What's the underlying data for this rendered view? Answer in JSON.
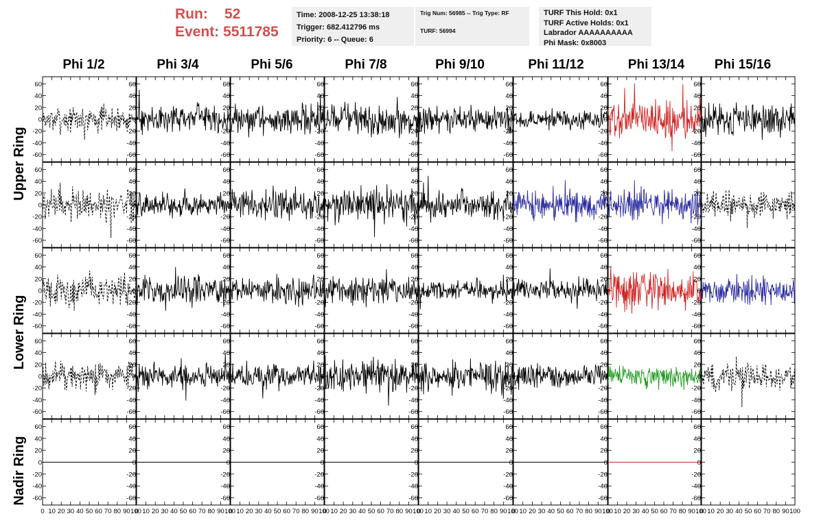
{
  "header": {
    "run_label": "Run:",
    "run_value": "52",
    "event_label": "Event:",
    "event_value": "5511785"
  },
  "info": {
    "time": "Time: 2008-12-25 13:38:18",
    "trigger": "Trigger: 682.412796 ms",
    "priority": "Priority: 6 -- Queue: 6",
    "trig_num": "Trig Num: 56985 -- Trig Type: RF",
    "turf": "TURF: 56994",
    "turf_hold": "TURF This Hold: 0x1",
    "turf_active": "TURF Active Holds: 0x1",
    "labrador": "Labrador AAAAAAAAAA",
    "phi_mask": "Phi Mask: 0x8003"
  },
  "colors": {
    "black": "#000000",
    "red": "#d02020",
    "blue": "#2a2aa0",
    "green": "#1c9a1c"
  },
  "chart_data": {
    "type": "line",
    "columns": [
      "Phi 1/2",
      "Phi 3/4",
      "Phi 5/6",
      "Phi 7/8",
      "Phi 9/10",
      "Phi 11/12",
      "Phi 13/14",
      "Phi 15/16"
    ],
    "ring_labels": [
      "Upper Ring",
      "Lower Ring",
      "Nadir Ring"
    ],
    "rows": 5,
    "ylim": [
      -72,
      72
    ],
    "xlim": [
      0,
      100
    ],
    "ytick_values": [
      60,
      40,
      20,
      0,
      -20,
      -40,
      -60
    ],
    "ytick_labels": [
      "60",
      "40",
      "20",
      "0",
      "-20",
      "-40",
      "-60"
    ],
    "xtick_labels": [
      "0",
      "10",
      "20",
      "30",
      "40",
      "50",
      "60",
      "70",
      "80",
      "90",
      "100"
    ],
    "trace_color_grid": [
      [
        "black",
        "black",
        "black",
        "black",
        "black",
        "black",
        "red",
        "black"
      ],
      [
        "black",
        "black",
        "black",
        "black",
        "black",
        "blue",
        "blue",
        "black"
      ],
      [
        "black",
        "black",
        "black",
        "black",
        "black",
        "black",
        "red",
        "blue"
      ],
      [
        "black",
        "black",
        "black",
        "black",
        "black",
        "black",
        "green",
        "black"
      ],
      [
        "black",
        "black",
        "black",
        "black",
        "black",
        "black",
        "red",
        "none"
      ]
    ],
    "dashed_grid": [
      [
        true,
        false,
        false,
        false,
        false,
        false,
        false,
        false
      ],
      [
        true,
        false,
        false,
        false,
        false,
        false,
        false,
        true
      ],
      [
        true,
        false,
        false,
        false,
        false,
        false,
        false,
        false
      ],
      [
        true,
        false,
        false,
        false,
        false,
        false,
        false,
        true
      ],
      [
        false,
        false,
        false,
        false,
        false,
        false,
        false,
        false
      ]
    ],
    "amplitude_grid": [
      [
        12,
        14,
        15,
        16,
        13,
        9,
        17,
        16
      ],
      [
        16,
        11,
        15,
        17,
        14,
        14,
        15,
        14
      ],
      [
        15,
        14,
        13,
        13,
        10,
        11,
        20,
        14
      ],
      [
        14,
        12,
        13,
        16,
        15,
        11,
        11,
        14
      ],
      [
        0,
        0,
        0,
        0,
        0,
        0,
        0,
        0
      ]
    ]
  }
}
